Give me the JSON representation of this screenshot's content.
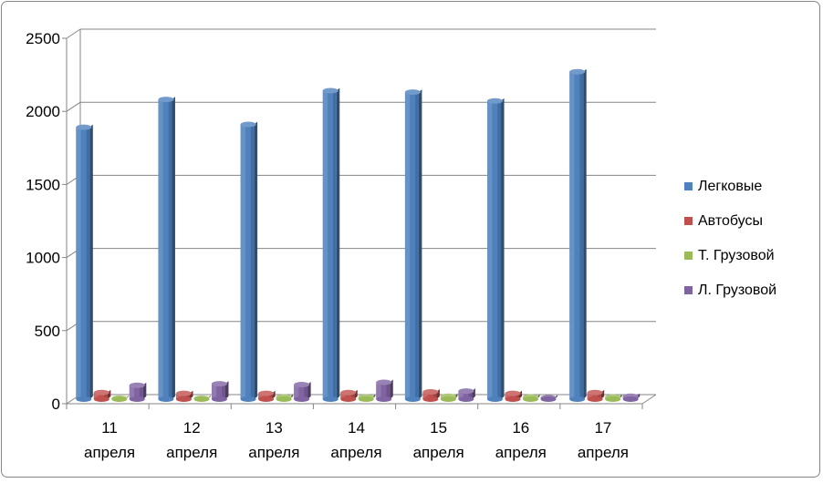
{
  "chart_data": {
    "type": "bar",
    "subtype": "3d-clustered-column",
    "title": "",
    "xlabel": "",
    "ylabel": "",
    "ylim": [
      0,
      2500
    ],
    "y_ticks": [
      "0",
      "500",
      "1000",
      "1500",
      "2000",
      "2500"
    ],
    "grid": true,
    "legend_position": "right",
    "categories": [
      [
        "11",
        "апреля"
      ],
      [
        "12",
        "апреля"
      ],
      [
        "13",
        "апреля"
      ],
      [
        "14",
        "апреля"
      ],
      [
        "15",
        "апреля"
      ],
      [
        "16",
        "апреля"
      ],
      [
        "17",
        "апреля"
      ]
    ],
    "series": [
      {
        "name": "Легковые",
        "color": "#4F81BD",
        "values": [
          1860,
          2050,
          1880,
          2110,
          2100,
          2040,
          2240
        ]
      },
      {
        "name": "Автобусы",
        "color": "#C0504D",
        "values": [
          45,
          40,
          40,
          45,
          50,
          40,
          45
        ]
      },
      {
        "name": "Т. Грузовой",
        "color": "#9BBB59",
        "values": [
          5,
          5,
          15,
          15,
          20,
          15,
          15
        ]
      },
      {
        "name": "Л. Грузовой",
        "color": "#8064A2",
        "values": [
          95,
          105,
          100,
          115,
          55,
          10,
          20
        ]
      }
    ]
  }
}
